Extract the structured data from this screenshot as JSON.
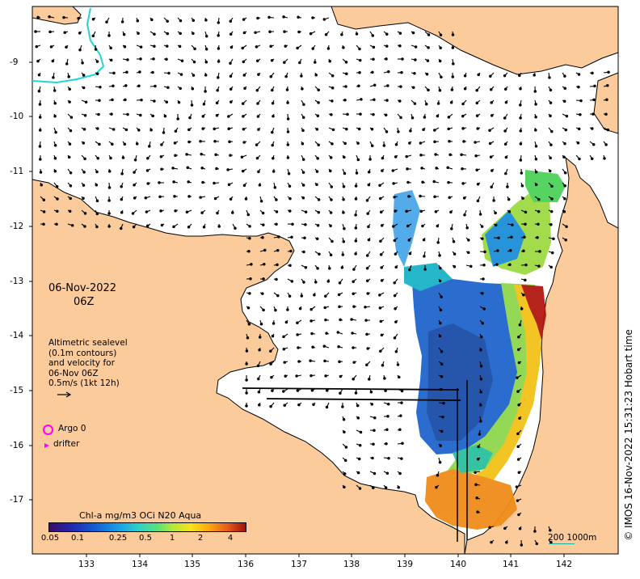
{
  "date": {
    "line1": "06-Nov-2022",
    "line2": "06Z"
  },
  "info": {
    "line1": "Altimetric sealevel",
    "line2": "(0.1m contours)",
    "line3": "and velocity for",
    "line4": "06-Nov 06Z",
    "line5": "0.5m/s (1kt 12h)"
  },
  "legend": {
    "argo": "Argo 0",
    "drifter": "drifter"
  },
  "colorbar": {
    "title": "Chl-a mg/m3 OCi N20 Aqua",
    "ticks": [
      "0.05",
      "0.1",
      "0.25",
      "0.5",
      "1",
      "2",
      "4"
    ]
  },
  "timestamp": "© IMOS 16-Nov-2022 15:31:23 Hobart time",
  "scale": {
    "label": "200  1000m"
  },
  "axes": {
    "x_ticks": [
      "133",
      "134",
      "135",
      "136",
      "137",
      "138",
      "139",
      "140",
      "141",
      "142"
    ],
    "y_ticks": [
      "-9",
      "-10",
      "-11",
      "-12",
      "-13",
      "-14",
      "-15",
      "-16",
      "-17"
    ]
  },
  "colors": {
    "land": "#fbcb9b",
    "ocean": "#ffffff",
    "markers": "#ff00ff",
    "contour": "#22d3d3"
  }
}
